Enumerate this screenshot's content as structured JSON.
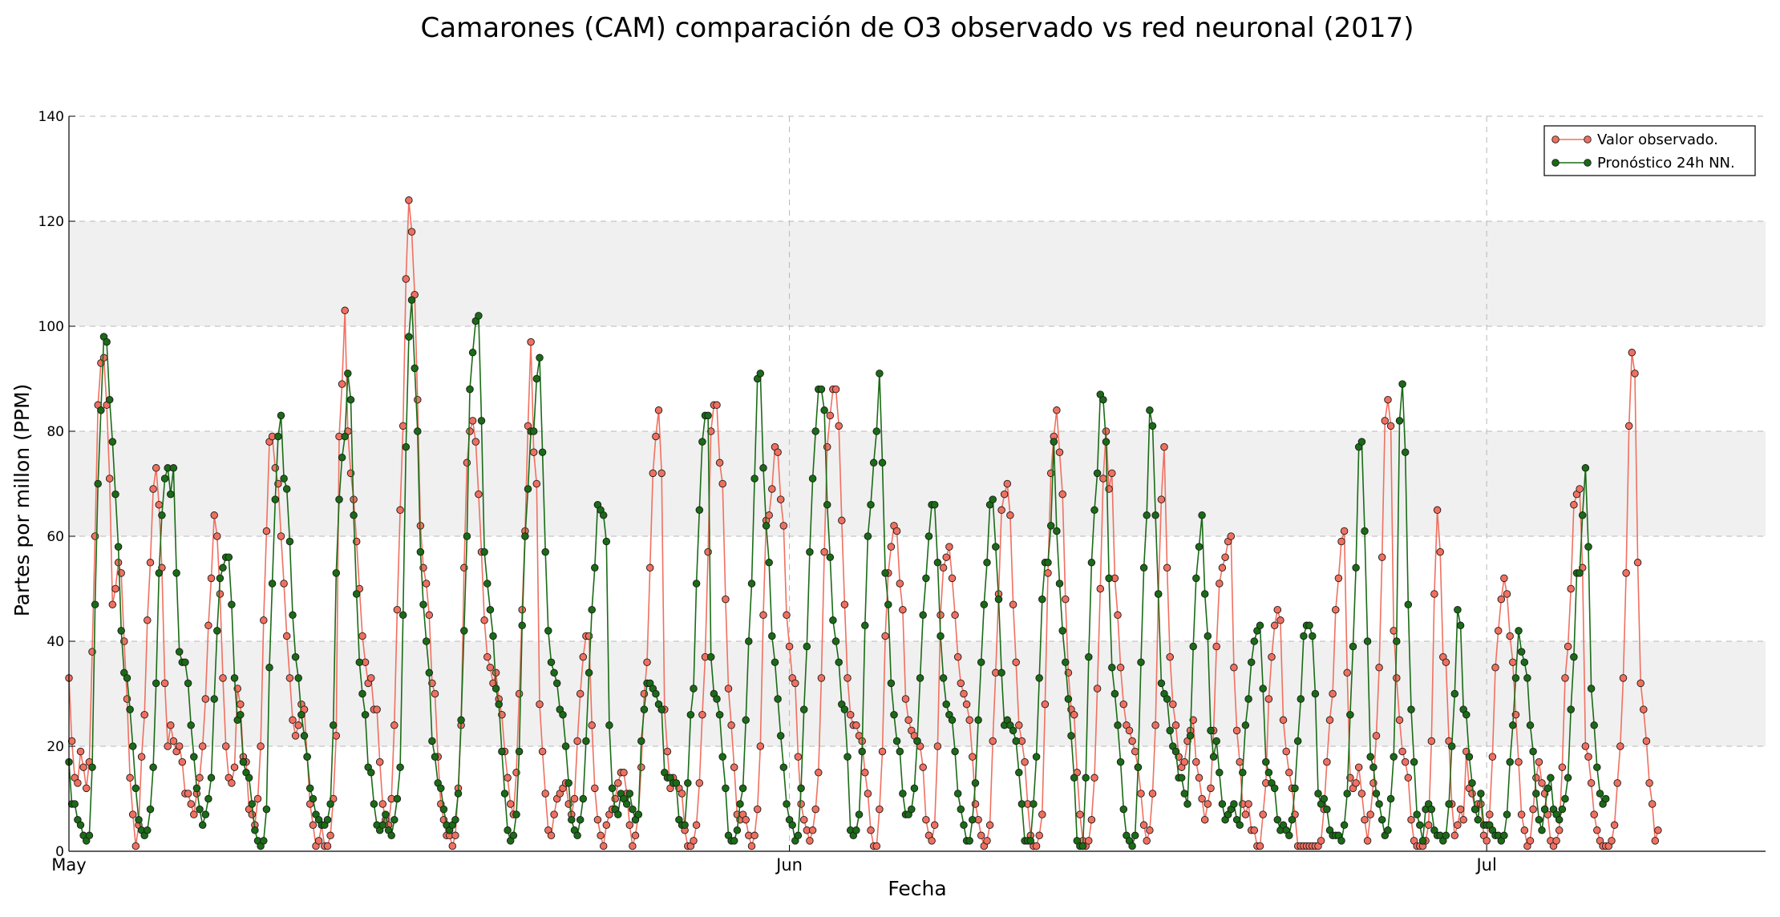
{
  "chart_data": {
    "type": "line",
    "title": "Camarones (CAM) comparación de O3 observado vs red neuronal (2017)",
    "xlabel": "Fecha",
    "ylabel": "Partes por millon (PPM)",
    "ylim": [
      0,
      140
    ],
    "xlim": [
      "2017-05-01",
      "2017-07-13"
    ],
    "x_ticks": [
      {
        "date": "2017-05-01",
        "label": "May"
      },
      {
        "date": "2017-06-01",
        "label": "Jun"
      },
      {
        "date": "2017-07-01",
        "label": "Jul"
      }
    ],
    "y_ticks": [
      0,
      20,
      40,
      60,
      80,
      100,
      120,
      140
    ],
    "grid": true,
    "shaded_bands": [
      [
        20,
        40
      ],
      [
        60,
        80
      ],
      [
        100,
        120
      ]
    ],
    "legend_position": "top-right",
    "series": [
      {
        "name": "Valor observado.",
        "color": "#f07060",
        "start": "2017-05-01",
        "interval": "3h",
        "values": [
          33,
          21,
          14,
          13,
          19,
          16,
          12,
          17,
          38,
          60,
          85,
          93,
          94,
          85,
          71,
          47,
          50,
          55,
          53,
          40,
          29,
          14,
          7,
          1,
          5,
          18,
          26,
          44,
          55,
          69,
          73,
          66,
          54,
          32,
          20,
          24,
          21,
          19,
          20,
          17,
          11,
          11,
          9,
          7,
          11,
          14,
          20,
          29,
          43,
          52,
          64,
          60,
          49,
          33,
          20,
          14,
          13,
          16,
          31,
          28,
          18,
          17,
          8,
          7,
          5,
          10,
          20,
          44,
          61,
          78,
          79,
          73,
          70,
          60,
          51,
          41,
          33,
          25,
          22,
          24,
          28,
          27,
          18,
          9,
          5,
          1,
          2,
          5,
          1,
          1,
          3,
          10,
          22,
          79,
          89,
          103,
          80,
          72,
          67,
          59,
          50,
          41,
          36,
          32,
          33,
          27,
          27,
          17,
          9,
          6,
          5,
          10,
          24,
          46,
          65,
          81,
          109,
          124,
          118,
          106,
          86,
          62,
          54,
          51,
          45,
          32,
          30,
          18,
          9,
          6,
          3,
          3,
          1,
          3,
          12,
          24,
          54,
          74,
          80,
          82,
          78,
          68,
          57,
          44,
          37,
          35,
          32,
          34,
          29,
          26,
          19,
          14,
          9,
          7,
          15,
          30,
          46,
          61,
          81,
          97,
          76,
          70,
          28,
          19,
          11,
          4,
          3,
          7,
          10,
          11,
          12,
          13,
          9,
          7,
          10,
          21,
          30,
          37,
          41,
          41,
          24,
          12,
          6,
          3,
          1,
          5,
          7,
          8,
          10,
          13,
          15,
          15,
          11,
          5,
          1,
          3,
          7,
          16,
          30,
          36,
          54,
          72,
          79,
          84,
          72,
          27,
          19,
          12,
          14,
          13,
          12,
          11,
          4,
          1,
          1,
          2,
          5,
          13,
          26,
          37,
          57,
          80,
          85,
          85,
          74,
          70,
          48,
          31,
          24,
          16,
          7,
          6,
          7,
          6,
          3,
          1,
          3,
          8,
          20,
          45,
          63,
          64,
          69,
          77,
          76,
          67,
          62,
          45,
          39,
          33,
          32,
          18,
          9,
          6,
          4,
          2,
          4,
          8,
          15,
          33,
          57,
          77,
          83,
          88,
          88,
          81,
          63,
          47,
          33,
          26,
          24,
          24,
          22,
          21,
          15,
          11,
          4,
          1,
          1,
          8,
          19,
          41,
          53,
          58,
          62,
          61,
          51,
          46,
          29,
          25,
          23,
          22,
          21,
          20,
          16,
          6,
          3,
          2,
          5,
          20,
          45,
          54,
          56,
          58,
          52,
          45,
          37,
          32,
          30,
          28,
          25,
          18,
          9,
          6,
          3,
          1,
          2,
          5,
          21,
          34,
          49,
          65,
          68,
          70,
          64,
          47,
          36,
          24,
          21,
          17,
          9,
          3,
          1,
          1,
          3,
          7,
          28,
          53,
          72,
          79,
          84,
          76,
          68,
          48,
          34,
          27,
          26,
          15,
          7,
          2,
          1,
          2,
          6,
          14,
          31,
          50,
          71,
          80,
          69,
          72,
          52,
          45,
          35,
          28,
          24,
          23,
          21,
          19,
          16,
          11,
          5,
          2,
          4,
          11,
          24,
          49,
          67,
          77,
          54,
          37,
          28,
          24,
          18,
          16,
          17,
          21,
          23,
          25,
          17,
          14,
          10,
          6,
          9,
          12,
          23,
          39,
          51,
          54,
          56,
          59,
          60,
          35,
          23,
          17,
          9,
          7,
          9,
          4,
          4,
          1,
          1,
          7,
          13,
          29,
          37,
          43,
          46,
          44,
          25,
          19,
          15,
          12,
          7,
          1,
          1,
          1,
          1,
          1,
          1,
          1,
          1,
          2,
          8,
          17,
          25,
          30,
          46,
          52,
          59,
          61,
          34,
          14,
          12,
          13,
          16,
          11,
          6,
          2,
          7,
          13,
          22,
          35,
          56,
          82,
          86,
          81,
          42,
          33,
          25,
          19,
          17,
          14,
          6,
          2,
          1,
          1,
          1,
          2,
          5,
          21,
          49,
          65,
          57,
          37,
          36,
          21,
          9,
          3,
          5,
          8,
          6,
          19,
          12,
          11,
          8,
          9,
          9,
          3,
          2,
          7,
          18,
          35,
          42,
          48,
          52,
          49,
          41,
          36,
          26,
          17,
          7,
          4,
          1,
          2,
          8,
          14,
          17,
          13,
          11,
          7,
          2,
          1,
          2,
          4,
          16,
          33,
          39,
          50,
          66,
          68,
          69,
          54,
          20,
          18,
          13,
          7,
          4,
          2,
          1,
          1,
          1,
          2,
          5,
          13,
          20,
          33,
          53,
          81,
          95,
          91,
          55,
          32,
          27,
          21,
          13,
          9,
          2,
          4
        ],
        "marker": "circle"
      },
      {
        "name": "Pronóstico 24h NN.",
        "color": "#1a6b16",
        "start": "2017-05-01",
        "interval": "3h",
        "values": [
          17,
          9,
          9,
          6,
          5,
          3,
          2,
          3,
          16,
          47,
          70,
          84,
          98,
          97,
          86,
          78,
          68,
          58,
          42,
          34,
          33,
          27,
          20,
          12,
          6,
          4,
          3,
          4,
          8,
          16,
          32,
          53,
          64,
          71,
          73,
          68,
          73,
          53,
          38,
          36,
          36,
          32,
          24,
          18,
          12,
          8,
          5,
          7,
          10,
          14,
          29,
          42,
          52,
          54,
          56,
          56,
          47,
          33,
          25,
          26,
          17,
          15,
          14,
          9,
          4,
          2,
          1,
          2,
          8,
          35,
          51,
          67,
          79,
          83,
          71,
          69,
          59,
          45,
          37,
          33,
          26,
          22,
          18,
          12,
          10,
          7,
          6,
          5,
          5,
          6,
          9,
          24,
          53,
          67,
          75,
          79,
          91,
          86,
          64,
          49,
          36,
          30,
          26,
          16,
          15,
          9,
          5,
          4,
          5,
          7,
          4,
          3,
          6,
          10,
          16,
          45,
          77,
          98,
          105,
          92,
          80,
          57,
          47,
          40,
          34,
          21,
          18,
          13,
          12,
          8,
          5,
          4,
          5,
          6,
          11,
          25,
          42,
          60,
          88,
          95,
          101,
          102,
          82,
          57,
          51,
          46,
          41,
          31,
          28,
          19,
          11,
          4,
          2,
          3,
          7,
          19,
          43,
          60,
          69,
          80,
          80,
          90,
          94,
          76,
          57,
          42,
          36,
          34,
          32,
          27,
          26,
          20,
          13,
          6,
          4,
          3,
          6,
          10,
          21,
          34,
          46,
          54,
          66,
          65,
          64,
          59,
          24,
          12,
          8,
          7,
          11,
          10,
          9,
          11,
          8,
          6,
          7,
          21,
          27,
          32,
          32,
          31,
          30,
          28,
          27,
          15,
          14,
          14,
          13,
          13,
          6,
          5,
          5,
          13,
          26,
          31,
          51,
          65,
          78,
          83,
          83,
          37,
          30,
          29,
          26,
          18,
          12,
          3,
          2,
          2,
          4,
          9,
          12,
          25,
          40,
          51,
          71,
          90,
          91,
          73,
          62,
          55,
          41,
          36,
          29,
          22,
          16,
          9,
          6,
          5,
          2,
          3,
          12,
          27,
          39,
          57,
          71,
          80,
          88,
          88,
          84,
          66,
          56,
          44,
          40,
          36,
          28,
          27,
          18,
          4,
          3,
          4,
          7,
          19,
          43,
          60,
          66,
          74,
          80,
          91,
          74,
          53,
          47,
          32,
          26,
          21,
          19,
          11,
          7,
          7,
          8,
          12,
          21,
          33,
          45,
          52,
          60,
          66,
          66,
          55,
          41,
          33,
          28,
          26,
          25,
          19,
          11,
          8,
          5,
          2,
          2,
          6,
          13,
          25,
          36,
          47,
          55,
          66,
          67,
          58,
          48,
          34,
          24,
          25,
          24,
          23,
          21,
          15,
          9,
          2,
          2,
          2,
          9,
          18,
          33,
          48,
          55,
          55,
          62,
          78,
          61,
          51,
          42,
          36,
          29,
          22,
          14,
          2,
          1,
          1,
          14,
          37,
          55,
          65,
          72,
          87,
          86,
          78,
          52,
          35,
          30,
          24,
          17,
          8,
          3,
          2,
          1,
          3,
          16,
          36,
          54,
          64,
          84,
          81,
          64,
          49,
          32,
          30,
          29,
          23,
          20,
          19,
          14,
          14,
          11,
          9,
          22,
          39,
          52,
          58,
          64,
          49,
          41,
          23,
          18,
          21,
          15,
          9,
          6,
          7,
          8,
          9,
          6,
          5,
          15,
          24,
          29,
          36,
          40,
          42,
          43,
          31,
          17,
          15,
          13,
          12,
          6,
          4,
          5,
          4,
          3,
          6,
          12,
          21,
          29,
          41,
          43,
          43,
          41,
          30,
          11,
          9,
          10,
          8,
          4,
          3,
          3,
          3,
          2,
          5,
          11,
          26,
          39,
          54,
          77,
          78,
          61,
          40,
          18,
          16,
          11,
          9,
          6,
          3,
          4,
          10,
          18,
          40,
          82,
          89,
          76,
          47,
          27,
          17,
          7,
          5,
          2,
          8,
          9,
          8,
          4,
          3,
          3,
          2,
          3,
          9,
          20,
          30,
          46,
          43,
          27,
          26,
          18,
          13,
          8,
          6,
          11,
          5,
          5,
          5,
          4,
          3,
          3,
          2,
          3,
          7,
          17,
          24,
          33,
          42,
          38,
          36,
          33,
          24,
          19,
          11,
          6,
          4,
          8,
          12,
          14,
          8,
          7,
          6,
          8,
          10,
          14,
          27,
          37,
          53,
          53,
          64,
          73,
          58,
          31,
          24,
          16,
          11,
          9,
          10
        ]
      }
    ]
  }
}
